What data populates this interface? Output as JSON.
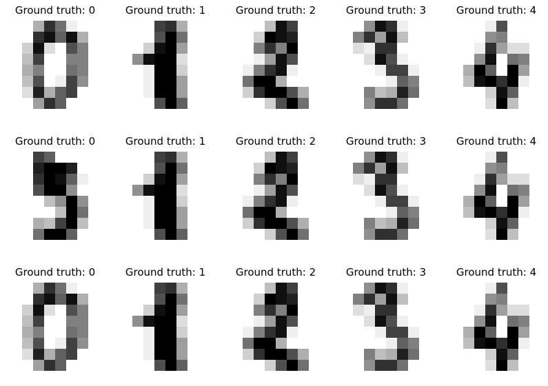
{
  "figure": {
    "panels": [
      {
        "title": "Ground truth: 0",
        "pixels": [
          [
            0,
            0,
            5,
            13,
            9,
            1,
            0,
            0
          ],
          [
            0,
            0,
            13,
            15,
            10,
            15,
            5,
            0
          ],
          [
            0,
            3,
            15,
            2,
            0,
            11,
            8,
            0
          ],
          [
            0,
            4,
            12,
            0,
            0,
            8,
            8,
            0
          ],
          [
            0,
            5,
            8,
            0,
            0,
            9,
            8,
            0
          ],
          [
            0,
            4,
            11,
            0,
            1,
            12,
            7,
            0
          ],
          [
            0,
            2,
            14,
            5,
            10,
            12,
            0,
            0
          ],
          [
            0,
            0,
            6,
            13,
            10,
            0,
            0,
            0
          ]
        ]
      },
      {
        "title": "Ground truth: 1",
        "pixels": [
          [
            0,
            0,
            0,
            12,
            13,
            5,
            0,
            0
          ],
          [
            0,
            0,
            0,
            11,
            16,
            9,
            0,
            0
          ],
          [
            0,
            0,
            3,
            15,
            16,
            6,
            0,
            0
          ],
          [
            0,
            7,
            15,
            16,
            16,
            2,
            0,
            0
          ],
          [
            0,
            0,
            1,
            16,
            16,
            3,
            0,
            0
          ],
          [
            0,
            0,
            1,
            16,
            16,
            6,
            0,
            0
          ],
          [
            0,
            0,
            1,
            16,
            16,
            6,
            0,
            0
          ],
          [
            0,
            0,
            0,
            11,
            16,
            10,
            0,
            0
          ]
        ]
      },
      {
        "title": "Ground truth: 2",
        "pixels": [
          [
            0,
            0,
            0,
            4,
            15,
            12,
            0,
            0
          ],
          [
            0,
            0,
            3,
            16,
            15,
            14,
            0,
            0
          ],
          [
            0,
            0,
            8,
            13,
            8,
            16,
            0,
            0
          ],
          [
            0,
            0,
            1,
            6,
            15,
            11,
            0,
            0
          ],
          [
            0,
            1,
            8,
            13,
            15,
            1,
            0,
            0
          ],
          [
            0,
            9,
            16,
            16,
            5,
            0,
            0,
            0
          ],
          [
            0,
            3,
            13,
            16,
            16,
            11,
            5,
            0
          ],
          [
            0,
            0,
            0,
            3,
            11,
            16,
            9,
            0
          ]
        ]
      },
      {
        "title": "Ground truth: 3",
        "pixels": [
          [
            0,
            0,
            7,
            15,
            13,
            1,
            0,
            0
          ],
          [
            0,
            8,
            13,
            6,
            15,
            4,
            0,
            0
          ],
          [
            0,
            2,
            1,
            13,
            13,
            0,
            0,
            0
          ],
          [
            0,
            0,
            2,
            15,
            11,
            1,
            0,
            0
          ],
          [
            0,
            0,
            0,
            1,
            12,
            12,
            1,
            0
          ],
          [
            0,
            0,
            0,
            0,
            1,
            10,
            8,
            0
          ],
          [
            0,
            0,
            8,
            4,
            5,
            14,
            9,
            0
          ],
          [
            0,
            0,
            7,
            13,
            13,
            9,
            0,
            0
          ]
        ]
      },
      {
        "title": "Ground truth: 4",
        "pixels": [
          [
            0,
            0,
            0,
            1,
            11,
            0,
            0,
            0
          ],
          [
            0,
            0,
            0,
            7,
            8,
            0,
            0,
            0
          ],
          [
            0,
            0,
            1,
            13,
            6,
            2,
            2,
            0
          ],
          [
            0,
            0,
            7,
            15,
            0,
            9,
            8,
            0
          ],
          [
            0,
            5,
            16,
            10,
            0,
            16,
            6,
            0
          ],
          [
            0,
            4,
            15,
            16,
            13,
            16,
            1,
            0
          ],
          [
            0,
            0,
            0,
            3,
            15,
            10,
            0,
            0
          ],
          [
            0,
            0,
            0,
            2,
            16,
            4,
            0,
            0
          ]
        ]
      },
      {
        "title": "Ground truth: 0",
        "pixels": [
          [
            0,
            0,
            12,
            10,
            0,
            0,
            0,
            0
          ],
          [
            0,
            0,
            14,
            16,
            16,
            14,
            0,
            0
          ],
          [
            0,
            0,
            13,
            16,
            15,
            10,
            1,
            0
          ],
          [
            0,
            0,
            11,
            16,
            16,
            7,
            0,
            0
          ],
          [
            0,
            0,
            0,
            4,
            7,
            16,
            7,
            0
          ],
          [
            0,
            0,
            0,
            0,
            4,
            16,
            9,
            0
          ],
          [
            0,
            0,
            5,
            4,
            12,
            16,
            4,
            0
          ],
          [
            0,
            0,
            9,
            16,
            16,
            10,
            0,
            0
          ]
        ]
      },
      {
        "title": "Ground truth: 1",
        "pixels": [
          [
            0,
            0,
            0,
            12,
            13,
            5,
            0,
            0
          ],
          [
            0,
            0,
            0,
            11,
            16,
            9,
            0,
            0
          ],
          [
            0,
            0,
            3,
            15,
            16,
            6,
            0,
            0
          ],
          [
            0,
            7,
            15,
            16,
            16,
            2,
            0,
            0
          ],
          [
            0,
            0,
            1,
            16,
            16,
            3,
            0,
            0
          ],
          [
            0,
            0,
            1,
            16,
            16,
            6,
            0,
            0
          ],
          [
            0,
            0,
            1,
            16,
            16,
            6,
            0,
            0
          ],
          [
            0,
            0,
            0,
            11,
            16,
            10,
            0,
            0
          ]
        ]
      },
      {
        "title": "Ground truth: 2",
        "pixels": [
          [
            0,
            0,
            0,
            4,
            15,
            12,
            0,
            0
          ],
          [
            0,
            0,
            3,
            16,
            15,
            14,
            0,
            0
          ],
          [
            0,
            0,
            8,
            13,
            8,
            16,
            0,
            0
          ],
          [
            0,
            0,
            1,
            6,
            15,
            11,
            0,
            0
          ],
          [
            0,
            1,
            8,
            13,
            15,
            1,
            0,
            0
          ],
          [
            0,
            9,
            16,
            16,
            5,
            0,
            0,
            0
          ],
          [
            0,
            3,
            13,
            16,
            16,
            11,
            5,
            0
          ],
          [
            0,
            0,
            0,
            3,
            11,
            16,
            9,
            0
          ]
        ]
      },
      {
        "title": "Ground truth: 3",
        "pixels": [
          [
            0,
            0,
            7,
            15,
            13,
            1,
            0,
            0
          ],
          [
            0,
            8,
            13,
            6,
            15,
            4,
            0,
            0
          ],
          [
            0,
            2,
            1,
            13,
            13,
            0,
            0,
            0
          ],
          [
            0,
            0,
            2,
            15,
            11,
            1,
            0,
            0
          ],
          [
            0,
            0,
            0,
            1,
            12,
            12,
            1,
            0
          ],
          [
            0,
            0,
            0,
            0,
            1,
            10,
            8,
            0
          ],
          [
            0,
            0,
            8,
            4,
            5,
            14,
            9,
            0
          ],
          [
            0,
            0,
            7,
            13,
            13,
            9,
            0,
            0
          ]
        ]
      },
      {
        "title": "Ground truth: 4",
        "pixels": [
          [
            0,
            0,
            0,
            1,
            11,
            0,
            0,
            0
          ],
          [
            0,
            0,
            0,
            7,
            8,
            0,
            0,
            0
          ],
          [
            0,
            0,
            1,
            13,
            6,
            2,
            2,
            0
          ],
          [
            0,
            0,
            7,
            15,
            0,
            9,
            8,
            0
          ],
          [
            0,
            5,
            16,
            10,
            0,
            16,
            6,
            0
          ],
          [
            0,
            4,
            15,
            16,
            13,
            16,
            1,
            0
          ],
          [
            0,
            0,
            0,
            3,
            15,
            10,
            0,
            0
          ],
          [
            0,
            0,
            0,
            2,
            16,
            4,
            0,
            0
          ]
        ]
      },
      {
        "title": "Ground truth: 0",
        "pixels": [
          [
            0,
            0,
            5,
            13,
            9,
            1,
            0,
            0
          ],
          [
            0,
            0,
            13,
            15,
            10,
            15,
            5,
            0
          ],
          [
            0,
            3,
            15,
            2,
            0,
            11,
            8,
            0
          ],
          [
            0,
            4,
            12,
            0,
            0,
            8,
            8,
            0
          ],
          [
            0,
            5,
            8,
            0,
            0,
            9,
            8,
            0
          ],
          [
            0,
            4,
            11,
            0,
            1,
            12,
            7,
            0
          ],
          [
            0,
            2,
            14,
            5,
            10,
            12,
            0,
            0
          ],
          [
            0,
            0,
            6,
            13,
            10,
            0,
            0,
            0
          ]
        ]
      },
      {
        "title": "Ground truth: 1",
        "pixels": [
          [
            0,
            0,
            0,
            12,
            13,
            5,
            0,
            0
          ],
          [
            0,
            0,
            0,
            11,
            16,
            9,
            0,
            0
          ],
          [
            0,
            0,
            3,
            15,
            16,
            6,
            0,
            0
          ],
          [
            0,
            7,
            15,
            16,
            16,
            2,
            0,
            0
          ],
          [
            0,
            0,
            1,
            16,
            16,
            3,
            0,
            0
          ],
          [
            0,
            0,
            1,
            16,
            16,
            6,
            0,
            0
          ],
          [
            0,
            0,
            1,
            16,
            16,
            6,
            0,
            0
          ],
          [
            0,
            0,
            0,
            11,
            16,
            10,
            0,
            0
          ]
        ]
      },
      {
        "title": "Ground truth: 2",
        "pixels": [
          [
            0,
            0,
            0,
            4,
            15,
            12,
            0,
            0
          ],
          [
            0,
            0,
            3,
            16,
            15,
            14,
            0,
            0
          ],
          [
            0,
            0,
            8,
            13,
            8,
            16,
            0,
            0
          ],
          [
            0,
            0,
            1,
            6,
            15,
            11,
            0,
            0
          ],
          [
            0,
            1,
            8,
            13,
            15,
            1,
            0,
            0
          ],
          [
            0,
            9,
            16,
            16,
            5,
            0,
            0,
            0
          ],
          [
            0,
            3,
            13,
            16,
            16,
            11,
            5,
            0
          ],
          [
            0,
            0,
            0,
            3,
            11,
            16,
            9,
            0
          ]
        ]
      },
      {
        "title": "Ground truth: 3",
        "pixels": [
          [
            0,
            0,
            7,
            15,
            13,
            1,
            0,
            0
          ],
          [
            0,
            8,
            13,
            6,
            15,
            4,
            0,
            0
          ],
          [
            0,
            2,
            1,
            13,
            13,
            0,
            0,
            0
          ],
          [
            0,
            0,
            2,
            15,
            11,
            1,
            0,
            0
          ],
          [
            0,
            0,
            0,
            1,
            12,
            12,
            1,
            0
          ],
          [
            0,
            0,
            0,
            0,
            1,
            10,
            8,
            0
          ],
          [
            0,
            0,
            8,
            4,
            5,
            14,
            9,
            0
          ],
          [
            0,
            0,
            7,
            13,
            13,
            9,
            0,
            0
          ]
        ]
      },
      {
        "title": "Ground truth: 4",
        "pixels": [
          [
            0,
            0,
            0,
            1,
            11,
            0,
            0,
            0
          ],
          [
            0,
            0,
            0,
            7,
            8,
            0,
            0,
            0
          ],
          [
            0,
            0,
            1,
            13,
            6,
            2,
            2,
            0
          ],
          [
            0,
            0,
            7,
            15,
            0,
            9,
            8,
            0
          ],
          [
            0,
            5,
            16,
            10,
            0,
            16,
            6,
            0
          ],
          [
            0,
            4,
            15,
            16,
            13,
            16,
            1,
            0
          ],
          [
            0,
            0,
            0,
            3,
            15,
            10,
            0,
            0
          ],
          [
            0,
            0,
            0,
            2,
            16,
            4,
            0,
            0
          ]
        ]
      }
    ]
  }
}
